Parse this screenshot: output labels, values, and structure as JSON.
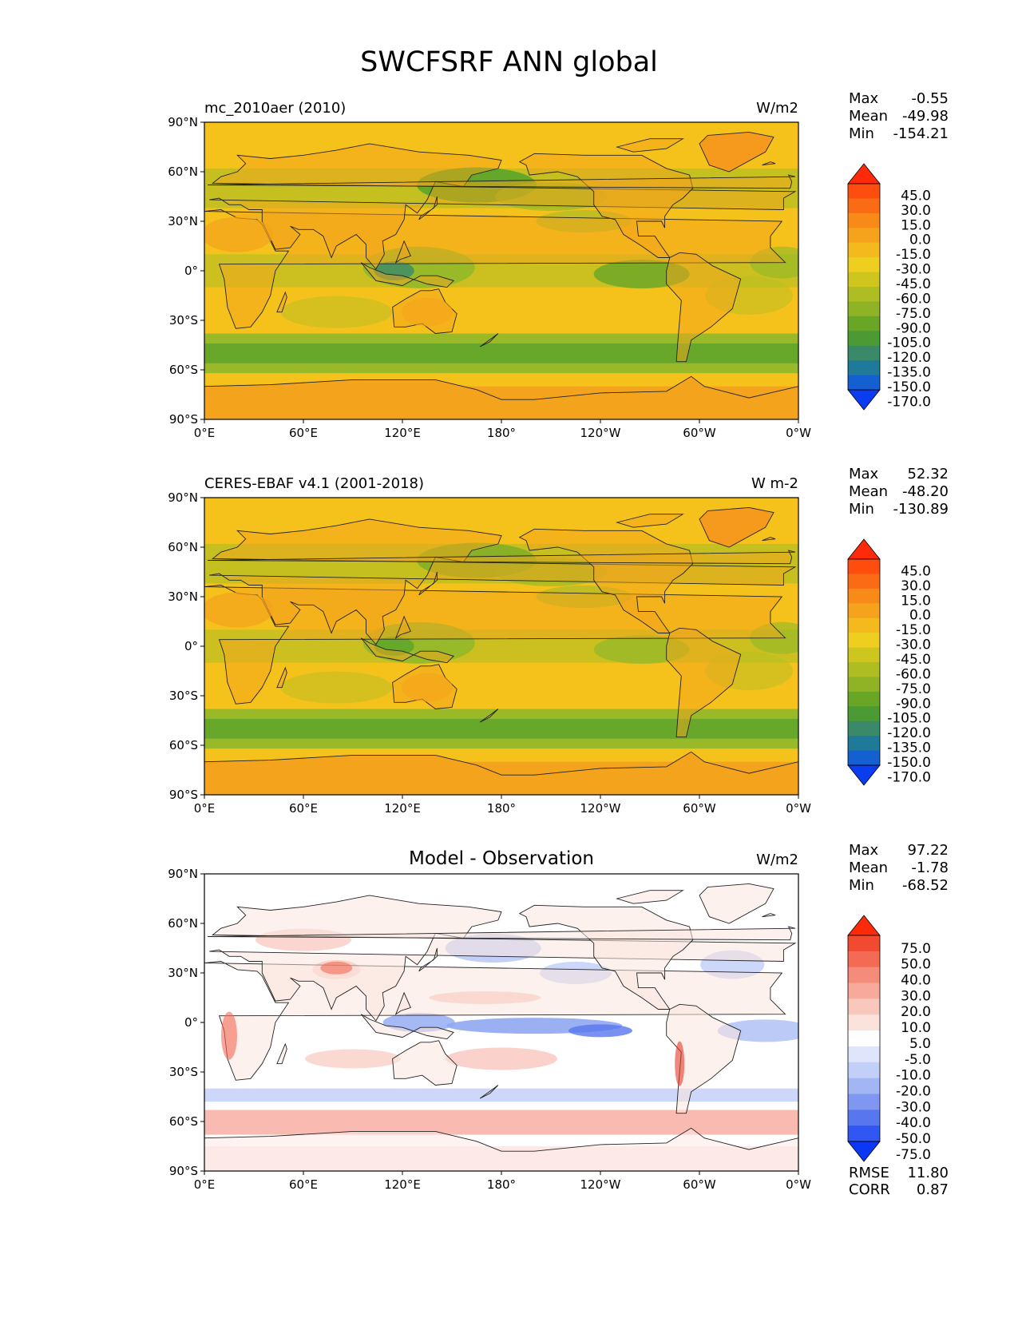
{
  "title": "SWCFSRF ANN global",
  "x_ticks": [
    "0°E",
    "60°E",
    "120°E",
    "180°",
    "120°W",
    "60°W",
    "0°W"
  ],
  "y_ticks": [
    "90°N",
    "60°N",
    "30°N",
    "0°",
    "30°S",
    "60°S",
    "90°S"
  ],
  "colors": {
    "ocean_main": "#f5c21b",
    "land_main": "#f4a31c",
    "greenland": "#f59a1c",
    "green_band": "#5aa42a",
    "light_green": "#8fb82a",
    "olive": "#b9bf22",
    "ocean_diff": "#ffffff",
    "blue_diff": "#8fa7f2",
    "red_diff": "#f7b3a8",
    "coast": "#222222"
  },
  "panels": [
    {
      "id": "model",
      "left_title": "mc_2010aer (2010)",
      "center_title": "",
      "units": "W/m2",
      "stats": {
        "max_label": "Max",
        "max": "-0.55",
        "mean_label": "Mean",
        "mean": "-49.98",
        "min_label": "Min",
        "min": "-154.21"
      },
      "colorbar": {
        "levels": [
          "45.0",
          "30.0",
          "15.0",
          "0.0",
          "-15.0",
          "-30.0",
          "-45.0",
          "-60.0",
          "-75.0",
          "-90.0",
          "-105.0",
          "-120.0",
          "-135.0",
          "-150.0",
          "-170.0"
        ],
        "colors": [
          "#ff2a0a",
          "#ff4d0f",
          "#fb6a14",
          "#f88a18",
          "#f5a31c",
          "#f3b91d",
          "#eecf20",
          "#cec61f",
          "#aebe22",
          "#8fb324",
          "#69a626",
          "#4b9a34",
          "#3a8a6a",
          "#1f7a9a",
          "#1560d0",
          "#0a3cf0"
        ]
      }
    },
    {
      "id": "obs",
      "left_title": "CERES-EBAF v4.1 (2001-2018)",
      "center_title": "",
      "units": "W m-2",
      "stats": {
        "max_label": "Max",
        "max": "52.32",
        "mean_label": "Mean",
        "mean": "-48.20",
        "min_label": "Min",
        "min": "-130.89"
      },
      "colorbar": {
        "levels": [
          "45.0",
          "30.0",
          "15.0",
          "0.0",
          "-15.0",
          "-30.0",
          "-45.0",
          "-60.0",
          "-75.0",
          "-90.0",
          "-105.0",
          "-120.0",
          "-135.0",
          "-150.0",
          "-170.0"
        ],
        "colors": [
          "#ff2a0a",
          "#ff4d0f",
          "#fb6a14",
          "#f88a18",
          "#f5a31c",
          "#f3b91d",
          "#eecf20",
          "#cec61f",
          "#aebe22",
          "#8fb324",
          "#69a626",
          "#4b9a34",
          "#3a8a6a",
          "#1f7a9a",
          "#1560d0",
          "#0a3cf0"
        ]
      }
    },
    {
      "id": "diff",
      "left_title": "",
      "center_title": "Model - Observation",
      "units": "W/m2",
      "stats": {
        "max_label": "Max",
        "max": "97.22",
        "mean_label": "Mean",
        "mean": "-1.78",
        "min_label": "Min",
        "min": "-68.52"
      },
      "colorbar": {
        "levels": [
          "75.0",
          "50.0",
          "40.0",
          "30.0",
          "20.0",
          "10.0",
          "5.0",
          "-5.0",
          "-10.0",
          "-20.0",
          "-30.0",
          "-40.0",
          "-50.0",
          "-75.0"
        ],
        "colors": [
          "#ff2a0a",
          "#f24a30",
          "#f36a55",
          "#f58c7b",
          "#f7aa9c",
          "#f9c8bd",
          "#fbe2db",
          "#ffffff",
          "#dfe6fb",
          "#c2d0f8",
          "#a2b6f4",
          "#7f97f1",
          "#5877ee",
          "#3056f3",
          "#0a38f5"
        ]
      },
      "metrics": {
        "rmse_label": "RMSE",
        "rmse": "11.80",
        "corr_label": "CORR",
        "corr": "0.87"
      }
    }
  ]
}
